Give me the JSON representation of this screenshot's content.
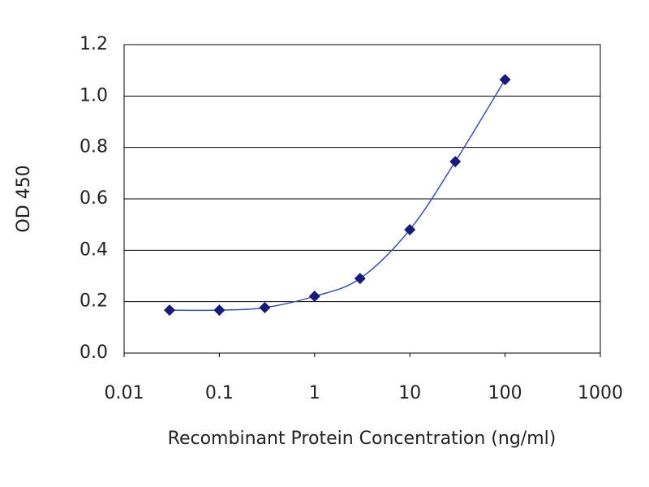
{
  "chart_data": {
    "type": "line",
    "x_label": "Recombinant Protein Concentration (ng/ml)",
    "y_label": "OD 450",
    "x": [
      0.03,
      0.1,
      0.3,
      1,
      3,
      10,
      30,
      100
    ],
    "values": [
      0.167,
      0.167,
      0.177,
      0.221,
      0.29,
      0.48,
      0.745,
      1.064
    ],
    "color": "#1a1a7a",
    "line_color": "#4050a8",
    "xscale": "log",
    "xlim": [
      0.01,
      1000
    ],
    "xticks": [
      0.01,
      0.1,
      1,
      10,
      100,
      1000
    ],
    "ylim": [
      0,
      1.2
    ],
    "yticks": [
      {
        "value": 0,
        "label": "0.0"
      },
      0.2,
      0.4,
      0.6,
      0.8,
      {
        "value": 1,
        "label": "1.0"
      },
      1.2
    ],
    "grid": true
  }
}
